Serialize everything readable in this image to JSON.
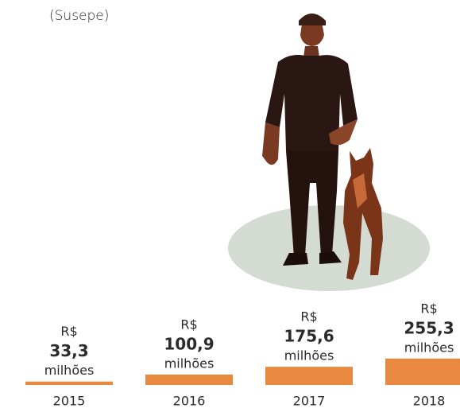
{
  "chart_data": {
    "type": "bar",
    "subtitle": "(Susepe)",
    "categories": [
      "2015",
      "2016",
      "2017",
      "2018"
    ],
    "values": [
      33.3,
      100.9,
      175.6,
      255.3
    ],
    "value_labels": [
      "33,3",
      "100,9",
      "175,6",
      "255,3"
    ],
    "value_prefix": "R$",
    "value_suffix": "milhões",
    "color": "#e8893f"
  }
}
